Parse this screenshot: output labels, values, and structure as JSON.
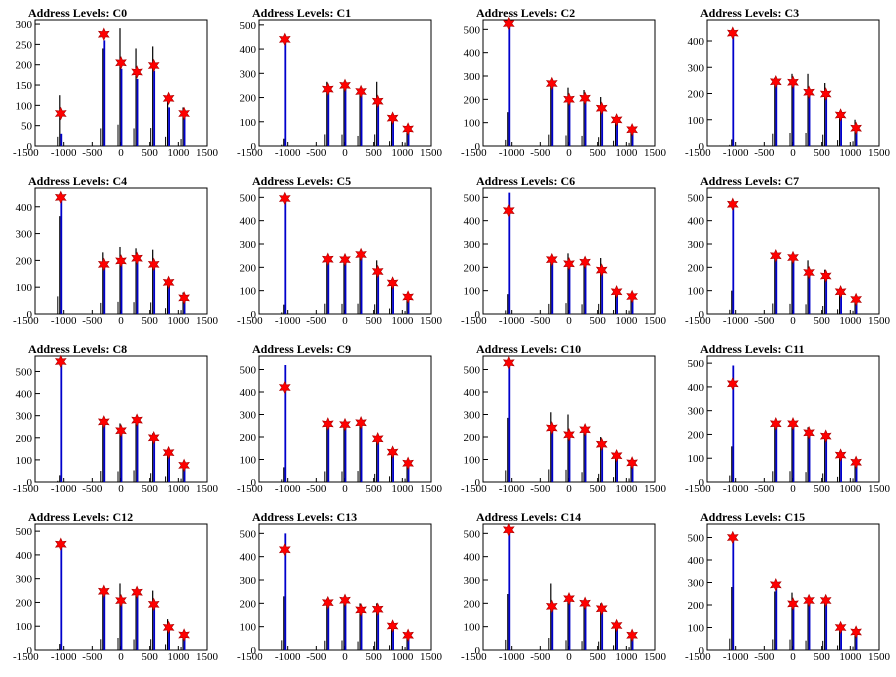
{
  "chart_data": [
    {
      "title": "Address Levels: C0",
      "type": "bar",
      "xlim": [
        -1500,
        1500
      ],
      "xticks": [
        -1500,
        -1000,
        -500,
        0,
        500,
        1000,
        1500
      ],
      "ylim": [
        0,
        310
      ],
      "yticks": [
        0,
        50,
        100,
        150,
        200,
        250,
        300
      ],
      "peaks": [
        {
          "x": -1050,
          "marker": 80,
          "black": 125,
          "blue": 30
        },
        {
          "x": -300,
          "marker": 275,
          "black": 240,
          "blue": 260
        },
        {
          "x": 0,
          "marker": 205,
          "black": 290,
          "blue": 190
        },
        {
          "x": 280,
          "marker": 182,
          "black": 240,
          "blue": 165
        },
        {
          "x": 570,
          "marker": 198,
          "black": 245,
          "blue": 185
        },
        {
          "x": 830,
          "marker": 117,
          "black": 125,
          "blue": 95
        },
        {
          "x": 1100,
          "marker": 80,
          "black": 95,
          "blue": 75
        }
      ]
    },
    {
      "title": "Address Levels: C1",
      "type": "bar",
      "xlim": [
        -1500,
        1500
      ],
      "xticks": [
        -1500,
        -1000,
        -500,
        0,
        500,
        1000,
        1500
      ],
      "ylim": [
        0,
        520
      ],
      "yticks": [
        0,
        100,
        200,
        300,
        400,
        500
      ],
      "peaks": [
        {
          "x": -1050,
          "marker": 440,
          "black": 30,
          "blue": 440
        },
        {
          "x": -300,
          "marker": 235,
          "black": 265,
          "blue": 230
        },
        {
          "x": 0,
          "marker": 250,
          "black": 260,
          "blue": 255
        },
        {
          "x": 280,
          "marker": 225,
          "black": 230,
          "blue": 225
        },
        {
          "x": 570,
          "marker": 185,
          "black": 265,
          "blue": 180
        },
        {
          "x": 830,
          "marker": 115,
          "black": 110,
          "blue": 110
        },
        {
          "x": 1100,
          "marker": 70,
          "black": 80,
          "blue": 65
        }
      ]
    },
    {
      "title": "Address Levels: C2",
      "type": "bar",
      "xlim": [
        -1500,
        1500
      ],
      "xticks": [
        -1500,
        -1000,
        -500,
        0,
        500,
        1000,
        1500
      ],
      "ylim": [
        0,
        540
      ],
      "yticks": [
        0,
        100,
        200,
        300,
        400,
        500
      ],
      "peaks": [
        {
          "x": -1050,
          "marker": 525,
          "black": 145,
          "blue": 530
        },
        {
          "x": -300,
          "marker": 268,
          "black": 270,
          "blue": 265
        },
        {
          "x": 0,
          "marker": 200,
          "black": 250,
          "blue": 195
        },
        {
          "x": 280,
          "marker": 205,
          "black": 240,
          "blue": 200
        },
        {
          "x": 570,
          "marker": 162,
          "black": 210,
          "blue": 155
        },
        {
          "x": 830,
          "marker": 112,
          "black": 125,
          "blue": 105
        },
        {
          "x": 1100,
          "marker": 70,
          "black": 75,
          "blue": 65
        }
      ]
    },
    {
      "title": "Address Levels: C3",
      "type": "bar",
      "xlim": [
        -1500,
        1500
      ],
      "xticks": [
        -1500,
        -1000,
        -500,
        0,
        500,
        1000,
        1500
      ],
      "ylim": [
        0,
        480
      ],
      "yticks": [
        0,
        100,
        200,
        300,
        400
      ],
      "peaks": [
        {
          "x": -1050,
          "marker": 430,
          "black": 25,
          "blue": 430
        },
        {
          "x": -300,
          "marker": 245,
          "black": 260,
          "blue": 240
        },
        {
          "x": 0,
          "marker": 243,
          "black": 275,
          "blue": 240
        },
        {
          "x": 280,
          "marker": 205,
          "black": 275,
          "blue": 200
        },
        {
          "x": 570,
          "marker": 198,
          "black": 240,
          "blue": 195
        },
        {
          "x": 830,
          "marker": 118,
          "black": 125,
          "blue": 110
        },
        {
          "x": 1100,
          "marker": 68,
          "black": 100,
          "blue": 60
        }
      ]
    },
    {
      "title": "Address Levels: C4",
      "type": "bar",
      "xlim": [
        -1500,
        1500
      ],
      "xticks": [
        -1500,
        -1000,
        -500,
        0,
        500,
        1000,
        1500
      ],
      "ylim": [
        0,
        470
      ],
      "yticks": [
        0,
        100,
        200,
        300,
        400
      ],
      "peaks": [
        {
          "x": -1050,
          "marker": 435,
          "black": 365,
          "blue": 435
        },
        {
          "x": -300,
          "marker": 185,
          "black": 230,
          "blue": 180
        },
        {
          "x": 0,
          "marker": 198,
          "black": 250,
          "blue": 195
        },
        {
          "x": 280,
          "marker": 208,
          "black": 245,
          "blue": 205
        },
        {
          "x": 570,
          "marker": 185,
          "black": 240,
          "blue": 180
        },
        {
          "x": 830,
          "marker": 118,
          "black": 120,
          "blue": 110
        },
        {
          "x": 1100,
          "marker": 60,
          "black": 80,
          "blue": 55
        }
      ]
    },
    {
      "title": "Address Levels: C5",
      "type": "bar",
      "xlim": [
        -1500,
        1500
      ],
      "xticks": [
        -1500,
        -1000,
        -500,
        0,
        500,
        1000,
        1500
      ],
      "ylim": [
        0,
        540
      ],
      "yticks": [
        0,
        100,
        200,
        300,
        400,
        500
      ],
      "peaks": [
        {
          "x": -1050,
          "marker": 495,
          "black": 40,
          "blue": 495
        },
        {
          "x": -300,
          "marker": 235,
          "black": 245,
          "blue": 230
        },
        {
          "x": 0,
          "marker": 233,
          "black": 240,
          "blue": 230
        },
        {
          "x": 280,
          "marker": 255,
          "black": 245,
          "blue": 250
        },
        {
          "x": 570,
          "marker": 182,
          "black": 230,
          "blue": 175
        },
        {
          "x": 830,
          "marker": 133,
          "black": 130,
          "blue": 125
        },
        {
          "x": 1100,
          "marker": 73,
          "black": 70,
          "blue": 65
        }
      ]
    },
    {
      "title": "Address Levels: C6",
      "type": "bar",
      "xlim": [
        -1500,
        1500
      ],
      "xticks": [
        -1500,
        -1000,
        -500,
        0,
        500,
        1000,
        1500
      ],
      "ylim": [
        0,
        540
      ],
      "yticks": [
        0,
        100,
        200,
        300,
        400,
        500
      ],
      "peaks": [
        {
          "x": -1050,
          "marker": 443,
          "black": 85,
          "blue": 520
        },
        {
          "x": -300,
          "marker": 233,
          "black": 240,
          "blue": 230
        },
        {
          "x": 0,
          "marker": 215,
          "black": 260,
          "blue": 210
        },
        {
          "x": 280,
          "marker": 222,
          "black": 230,
          "blue": 215
        },
        {
          "x": 570,
          "marker": 188,
          "black": 240,
          "blue": 185
        },
        {
          "x": 830,
          "marker": 95,
          "black": 95,
          "blue": 90
        },
        {
          "x": 1100,
          "marker": 75,
          "black": 80,
          "blue": 70
        }
      ]
    },
    {
      "title": "Address Levels: C7",
      "type": "bar",
      "xlim": [
        -1500,
        1500
      ],
      "xticks": [
        -1500,
        -1000,
        -500,
        0,
        500,
        1000,
        1500
      ],
      "ylim": [
        0,
        540
      ],
      "yticks": [
        0,
        100,
        200,
        300,
        400,
        500
      ],
      "peaks": [
        {
          "x": -1050,
          "marker": 470,
          "black": 100,
          "blue": 470
        },
        {
          "x": -300,
          "marker": 250,
          "black": 250,
          "blue": 245
        },
        {
          "x": 0,
          "marker": 242,
          "black": 240,
          "blue": 240
        },
        {
          "x": 280,
          "marker": 178,
          "black": 230,
          "blue": 175
        },
        {
          "x": 570,
          "marker": 163,
          "black": 190,
          "blue": 160
        },
        {
          "x": 830,
          "marker": 95,
          "black": 110,
          "blue": 90
        },
        {
          "x": 1100,
          "marker": 62,
          "black": 75,
          "blue": 60
        }
      ]
    },
    {
      "title": "Address Levels: C8",
      "type": "bar",
      "xlim": [
        -1500,
        1500
      ],
      "xticks": [
        -1500,
        -1000,
        -500,
        0,
        500,
        1000,
        1500
      ],
      "ylim": [
        0,
        570
      ],
      "yticks": [
        0,
        100,
        200,
        300,
        400,
        500
      ],
      "peaks": [
        {
          "x": -1050,
          "marker": 545,
          "black": 30,
          "blue": 545
        },
        {
          "x": -300,
          "marker": 272,
          "black": 275,
          "blue": 270
        },
        {
          "x": 0,
          "marker": 232,
          "black": 265,
          "blue": 230
        },
        {
          "x": 280,
          "marker": 280,
          "black": 290,
          "blue": 275
        },
        {
          "x": 570,
          "marker": 200,
          "black": 220,
          "blue": 195
        },
        {
          "x": 830,
          "marker": 133,
          "black": 140,
          "blue": 125
        },
        {
          "x": 1100,
          "marker": 75,
          "black": 85,
          "blue": 70
        }
      ]
    },
    {
      "title": "Address Levels: C9",
      "type": "bar",
      "xlim": [
        -1500,
        1500
      ],
      "xticks": [
        -1500,
        -1000,
        -500,
        0,
        500,
        1000,
        1500
      ],
      "ylim": [
        0,
        560
      ],
      "yticks": [
        0,
        100,
        200,
        300,
        400,
        500
      ],
      "peaks": [
        {
          "x": -1050,
          "marker": 420,
          "black": 65,
          "blue": 520
        },
        {
          "x": -300,
          "marker": 258,
          "black": 260,
          "blue": 255
        },
        {
          "x": 0,
          "marker": 255,
          "black": 260,
          "blue": 250
        },
        {
          "x": 280,
          "marker": 263,
          "black": 270,
          "blue": 260
        },
        {
          "x": 570,
          "marker": 192,
          "black": 200,
          "blue": 185
        },
        {
          "x": 830,
          "marker": 133,
          "black": 140,
          "blue": 125
        },
        {
          "x": 1100,
          "marker": 83,
          "black": 85,
          "blue": 80
        }
      ]
    },
    {
      "title": "Address Levels: C10",
      "type": "bar",
      "xlim": [
        -1500,
        1500
      ],
      "xticks": [
        -1500,
        -1000,
        -500,
        0,
        500,
        1000,
        1500
      ],
      "ylim": [
        0,
        560
      ],
      "yticks": [
        0,
        100,
        200,
        300,
        400,
        500
      ],
      "peaks": [
        {
          "x": -1050,
          "marker": 530,
          "black": 285,
          "blue": 530
        },
        {
          "x": -300,
          "marker": 240,
          "black": 310,
          "blue": 235
        },
        {
          "x": 0,
          "marker": 210,
          "black": 300,
          "blue": 205
        },
        {
          "x": 280,
          "marker": 232,
          "black": 240,
          "blue": 225
        },
        {
          "x": 570,
          "marker": 168,
          "black": 200,
          "blue": 160
        },
        {
          "x": 830,
          "marker": 117,
          "black": 120,
          "blue": 110
        },
        {
          "x": 1100,
          "marker": 85,
          "black": 90,
          "blue": 80
        }
      ]
    },
    {
      "title": "Address Levels: C11",
      "type": "bar",
      "xlim": [
        -1500,
        1500
      ],
      "xticks": [
        -1500,
        -1000,
        -500,
        0,
        500,
        1000,
        1500
      ],
      "ylim": [
        0,
        530
      ],
      "yticks": [
        0,
        100,
        200,
        300,
        400,
        500
      ],
      "peaks": [
        {
          "x": -1050,
          "marker": 413,
          "black": 150,
          "blue": 490
        },
        {
          "x": -300,
          "marker": 245,
          "black": 250,
          "blue": 240
        },
        {
          "x": 0,
          "marker": 245,
          "black": 250,
          "blue": 240
        },
        {
          "x": 280,
          "marker": 207,
          "black": 230,
          "blue": 200
        },
        {
          "x": 570,
          "marker": 193,
          "black": 200,
          "blue": 185
        },
        {
          "x": 830,
          "marker": 113,
          "black": 120,
          "blue": 105
        },
        {
          "x": 1100,
          "marker": 83,
          "black": 85,
          "blue": 80
        }
      ]
    },
    {
      "title": "Address Levels: C12",
      "type": "bar",
      "xlim": [
        -1500,
        1500
      ],
      "xticks": [
        -1500,
        -1000,
        -500,
        0,
        500,
        1000,
        1500
      ],
      "ylim": [
        0,
        530
      ],
      "yticks": [
        0,
        100,
        200,
        300,
        400,
        500
      ],
      "peaks": [
        {
          "x": -1050,
          "marker": 445,
          "black": 25,
          "blue": 445
        },
        {
          "x": -300,
          "marker": 247,
          "black": 250,
          "blue": 245
        },
        {
          "x": 0,
          "marker": 208,
          "black": 280,
          "blue": 205
        },
        {
          "x": 280,
          "marker": 243,
          "black": 245,
          "blue": 240
        },
        {
          "x": 570,
          "marker": 192,
          "black": 250,
          "blue": 185
        },
        {
          "x": 830,
          "marker": 95,
          "black": 130,
          "blue": 90
        },
        {
          "x": 1100,
          "marker": 63,
          "black": 70,
          "blue": 60
        }
      ]
    },
    {
      "title": "Address Levels: C13",
      "type": "bar",
      "xlim": [
        -1500,
        1500
      ],
      "xticks": [
        -1500,
        -1000,
        -500,
        0,
        500,
        1000,
        1500
      ],
      "ylim": [
        0,
        540
      ],
      "yticks": [
        0,
        100,
        200,
        300,
        400,
        500
      ],
      "peaks": [
        {
          "x": -1050,
          "marker": 430,
          "black": 230,
          "blue": 500
        },
        {
          "x": -300,
          "marker": 203,
          "black": 220,
          "blue": 200
        },
        {
          "x": 0,
          "marker": 213,
          "black": 225,
          "blue": 210
        },
        {
          "x": 280,
          "marker": 172,
          "black": 200,
          "blue": 165
        },
        {
          "x": 570,
          "marker": 175,
          "black": 200,
          "blue": 170
        },
        {
          "x": 830,
          "marker": 103,
          "black": 110,
          "blue": 100
        },
        {
          "x": 1100,
          "marker": 63,
          "black": 70,
          "blue": 60
        }
      ]
    },
    {
      "title": "Address Levels: C14",
      "type": "bar",
      "xlim": [
        -1500,
        1500
      ],
      "xticks": [
        -1500,
        -1000,
        -500,
        0,
        500,
        1000,
        1500
      ],
      "ylim": [
        0,
        540
      ],
      "yticks": [
        0,
        100,
        200,
        300,
        400,
        500
      ],
      "peaks": [
        {
          "x": -1050,
          "marker": 515,
          "black": 240,
          "blue": 515
        },
        {
          "x": -300,
          "marker": 187,
          "black": 285,
          "blue": 185
        },
        {
          "x": 0,
          "marker": 220,
          "black": 230,
          "blue": 215
        },
        {
          "x": 280,
          "marker": 200,
          "black": 210,
          "blue": 195
        },
        {
          "x": 570,
          "marker": 177,
          "black": 200,
          "blue": 170
        },
        {
          "x": 830,
          "marker": 105,
          "black": 110,
          "blue": 100
        },
        {
          "x": 1100,
          "marker": 63,
          "black": 70,
          "blue": 60
        }
      ]
    },
    {
      "title": "Address Levels: C15",
      "type": "bar",
      "xlim": [
        -1500,
        1500
      ],
      "xticks": [
        -1500,
        -1000,
        -500,
        0,
        500,
        1000,
        1500
      ],
      "ylim": [
        0,
        560
      ],
      "yticks": [
        0,
        100,
        200,
        300,
        400,
        500
      ],
      "peaks": [
        {
          "x": -1050,
          "marker": 500,
          "black": 280,
          "blue": 500
        },
        {
          "x": -300,
          "marker": 290,
          "black": 260,
          "blue": 280
        },
        {
          "x": 0,
          "marker": 205,
          "black": 255,
          "blue": 200
        },
        {
          "x": 280,
          "marker": 220,
          "black": 230,
          "blue": 215
        },
        {
          "x": 570,
          "marker": 220,
          "black": 225,
          "blue": 215
        },
        {
          "x": 830,
          "marker": 100,
          "black": 110,
          "blue": 95
        },
        {
          "x": 1100,
          "marker": 80,
          "black": 85,
          "blue": 75
        }
      ]
    }
  ],
  "colors": {
    "marker": "#ff0000",
    "series_blue": "#0000cc",
    "series_black": "#000000",
    "axes": "#000000"
  }
}
